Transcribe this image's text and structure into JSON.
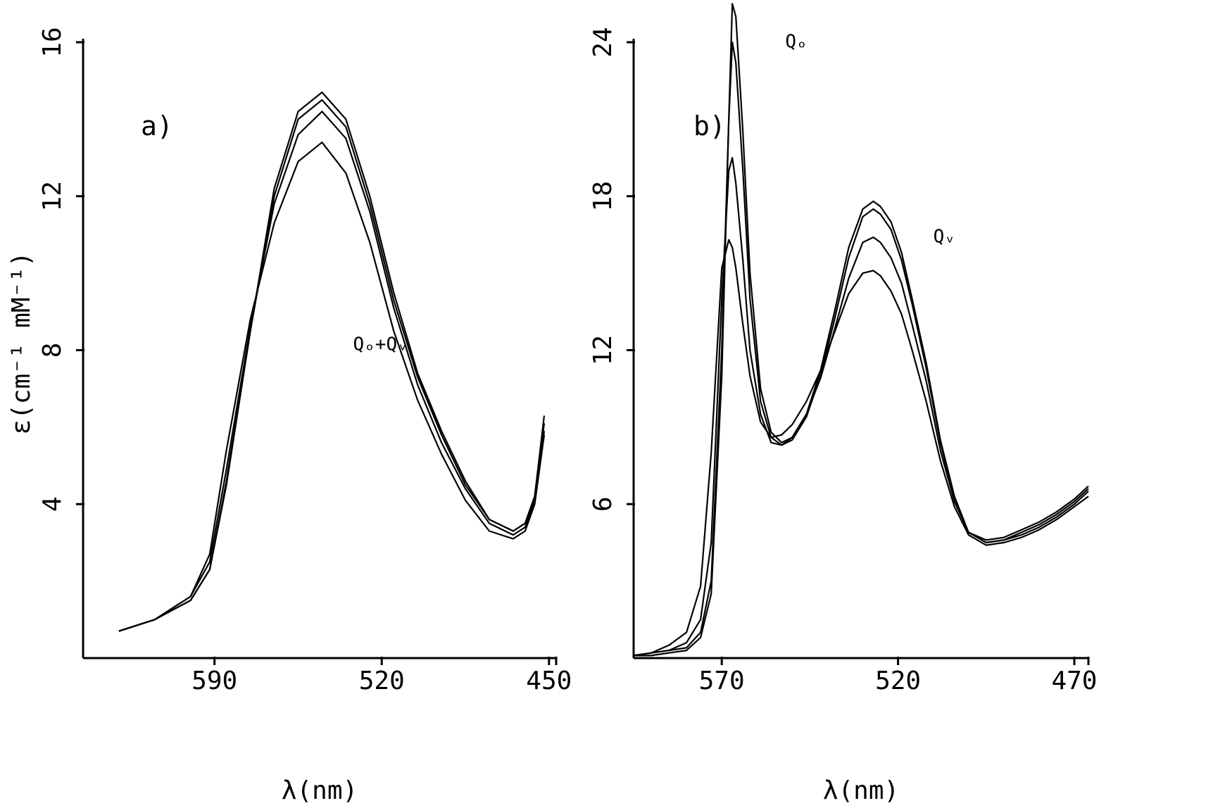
{
  "chart_data": [
    {
      "type": "line",
      "panel_label": "a)",
      "xlabel": "λ(nm)",
      "ylabel": "ε(cm⁻¹ mM⁻¹)",
      "xlim": [
        645,
        447
      ],
      "ylim": [
        0,
        16
      ],
      "x_reversed": true,
      "x_ticks": [
        590,
        520,
        450
      ],
      "x_tick_labels": [
        "590",
        "520",
        "450"
      ],
      "y_ticks": [
        4,
        8,
        12,
        16
      ],
      "y_tick_labels": [
        "4",
        "8",
        "12",
        "16"
      ],
      "annotations": [
        {
          "text": "Qₒ+Qᵥ",
          "x": 532,
          "y": 8.0
        }
      ],
      "series": [
        {
          "x": [
            630,
            615,
            600,
            592,
            585,
            575,
            565,
            555,
            545,
            535,
            525,
            515,
            505,
            495,
            485,
            475,
            465,
            460,
            456,
            452
          ],
          "y": [
            0.7,
            1.0,
            1.5,
            2.3,
            4.5,
            8.5,
            12.2,
            14.2,
            14.7,
            14.0,
            12.0,
            9.5,
            7.4,
            5.9,
            4.6,
            3.6,
            3.3,
            3.5,
            4.2,
            6.3
          ]
        },
        {
          "x": [
            630,
            615,
            600,
            592,
            585,
            575,
            565,
            555,
            545,
            535,
            525,
            515,
            505,
            495,
            485,
            475,
            465,
            460,
            456,
            452
          ],
          "y": [
            0.7,
            1.0,
            1.5,
            2.3,
            4.6,
            8.5,
            12.0,
            14.0,
            14.5,
            13.8,
            11.8,
            9.3,
            7.3,
            5.8,
            4.5,
            3.6,
            3.3,
            3.5,
            4.2,
            6.1
          ]
        },
        {
          "x": [
            630,
            615,
            600,
            592,
            585,
            575,
            565,
            555,
            545,
            535,
            525,
            515,
            505,
            495,
            485,
            475,
            465,
            460,
            456,
            452
          ],
          "y": [
            0.7,
            1.0,
            1.6,
            2.5,
            4.9,
            8.6,
            11.8,
            13.6,
            14.2,
            13.5,
            11.6,
            9.1,
            7.1,
            5.6,
            4.4,
            3.5,
            3.2,
            3.4,
            4.1,
            5.9
          ]
        },
        {
          "x": [
            630,
            615,
            600,
            592,
            585,
            575,
            565,
            555,
            545,
            535,
            525,
            515,
            505,
            495,
            485,
            475,
            465,
            460,
            456,
            452
          ],
          "y": [
            0.7,
            1.0,
            1.6,
            2.7,
            5.4,
            8.8,
            11.3,
            12.9,
            13.4,
            12.6,
            10.8,
            8.5,
            6.7,
            5.3,
            4.1,
            3.3,
            3.1,
            3.3,
            4.0,
            5.8
          ]
        }
      ]
    },
    {
      "type": "line",
      "panel_label": "b)",
      "xlabel": "λ(nm)",
      "ylabel": "",
      "xlim": [
        595,
        466
      ],
      "ylim": [
        0,
        24
      ],
      "x_reversed": true,
      "x_ticks": [
        570,
        520,
        470
      ],
      "x_tick_labels": [
        "570",
        "520",
        "470"
      ],
      "y_ticks": [
        6,
        12,
        18,
        24
      ],
      "y_tick_labels": [
        "6",
        "12",
        "18",
        "24"
      ],
      "annotations": [
        {
          "text": "Qₒ",
          "x": 552,
          "y": 23.8
        },
        {
          "text": "Qᵥ",
          "x": 510,
          "y": 16.2
        }
      ],
      "series": [
        {
          "x": [
            595,
            590,
            585,
            580,
            576,
            573,
            570,
            568,
            567,
            566,
            564,
            562,
            559,
            556,
            553,
            550,
            546,
            542,
            538,
            534,
            530,
            527,
            525,
            522,
            519,
            516,
            512,
            508,
            504,
            500,
            495,
            490,
            485,
            480,
            475,
            470,
            466
          ],
          "y": [
            0.1,
            0.1,
            0.2,
            0.3,
            0.8,
            2.5,
            11.0,
            21.0,
            25.5,
            25.0,
            20.5,
            15.0,
            10.5,
            8.8,
            8.4,
            8.6,
            9.5,
            11.2,
            13.5,
            16.0,
            17.5,
            17.8,
            17.6,
            17.0,
            15.8,
            14.0,
            11.5,
            8.5,
            6.3,
            4.9,
            4.6,
            4.7,
            5.0,
            5.3,
            5.7,
            6.2,
            6.7
          ]
        },
        {
          "x": [
            595,
            590,
            585,
            580,
            576,
            573,
            570,
            568,
            567,
            566,
            564,
            562,
            559,
            556,
            553,
            550,
            546,
            542,
            538,
            534,
            530,
            527,
            525,
            522,
            519,
            516,
            512,
            508,
            504,
            500,
            495,
            490,
            485,
            480,
            475,
            470,
            466
          ],
          "y": [
            0.1,
            0.2,
            0.3,
            0.4,
            1.0,
            3.0,
            12.0,
            21.0,
            24.0,
            23.2,
            19.0,
            14.0,
            10.0,
            8.6,
            8.3,
            8.5,
            9.4,
            11.0,
            13.2,
            15.6,
            17.2,
            17.5,
            17.3,
            16.7,
            15.5,
            13.8,
            11.3,
            8.4,
            6.2,
            4.9,
            4.5,
            4.6,
            4.9,
            5.2,
            5.6,
            6.1,
            6.6
          ]
        },
        {
          "x": [
            595,
            590,
            585,
            580,
            576,
            573,
            570,
            568,
            567,
            566,
            564,
            562,
            559,
            556,
            553,
            550,
            546,
            542,
            538,
            534,
            530,
            527,
            525,
            522,
            519,
            516,
            512,
            508,
            504,
            500,
            495,
            490,
            485,
            480,
            475,
            470,
            466
          ],
          "y": [
            0.1,
            0.2,
            0.3,
            0.6,
            1.5,
            4.5,
            14.0,
            19.0,
            19.5,
            18.5,
            15.5,
            12.0,
            9.5,
            8.4,
            8.3,
            8.6,
            9.5,
            10.9,
            12.8,
            14.8,
            16.2,
            16.4,
            16.2,
            15.6,
            14.6,
            13.0,
            10.8,
            8.1,
            6.1,
            4.9,
            4.5,
            4.6,
            4.8,
            5.1,
            5.5,
            6.0,
            6.5
          ]
        },
        {
          "x": [
            595,
            590,
            585,
            580,
            576,
            573,
            570,
            568,
            567,
            566,
            564,
            562,
            559,
            556,
            553,
            550,
            546,
            542,
            538,
            534,
            530,
            527,
            525,
            522,
            519,
            516,
            512,
            508,
            504,
            500,
            495,
            490,
            485,
            480,
            475,
            470,
            466
          ],
          "y": [
            0.1,
            0.2,
            0.5,
            1.0,
            2.8,
            8.0,
            15.2,
            16.3,
            16.0,
            15.2,
            13.0,
            11.0,
            9.2,
            8.6,
            8.7,
            9.1,
            10.0,
            11.2,
            12.7,
            14.2,
            15.0,
            15.1,
            14.9,
            14.3,
            13.4,
            12.0,
            10.0,
            7.7,
            5.9,
            4.8,
            4.4,
            4.5,
            4.7,
            5.0,
            5.4,
            5.9,
            6.3
          ]
        }
      ]
    }
  ]
}
